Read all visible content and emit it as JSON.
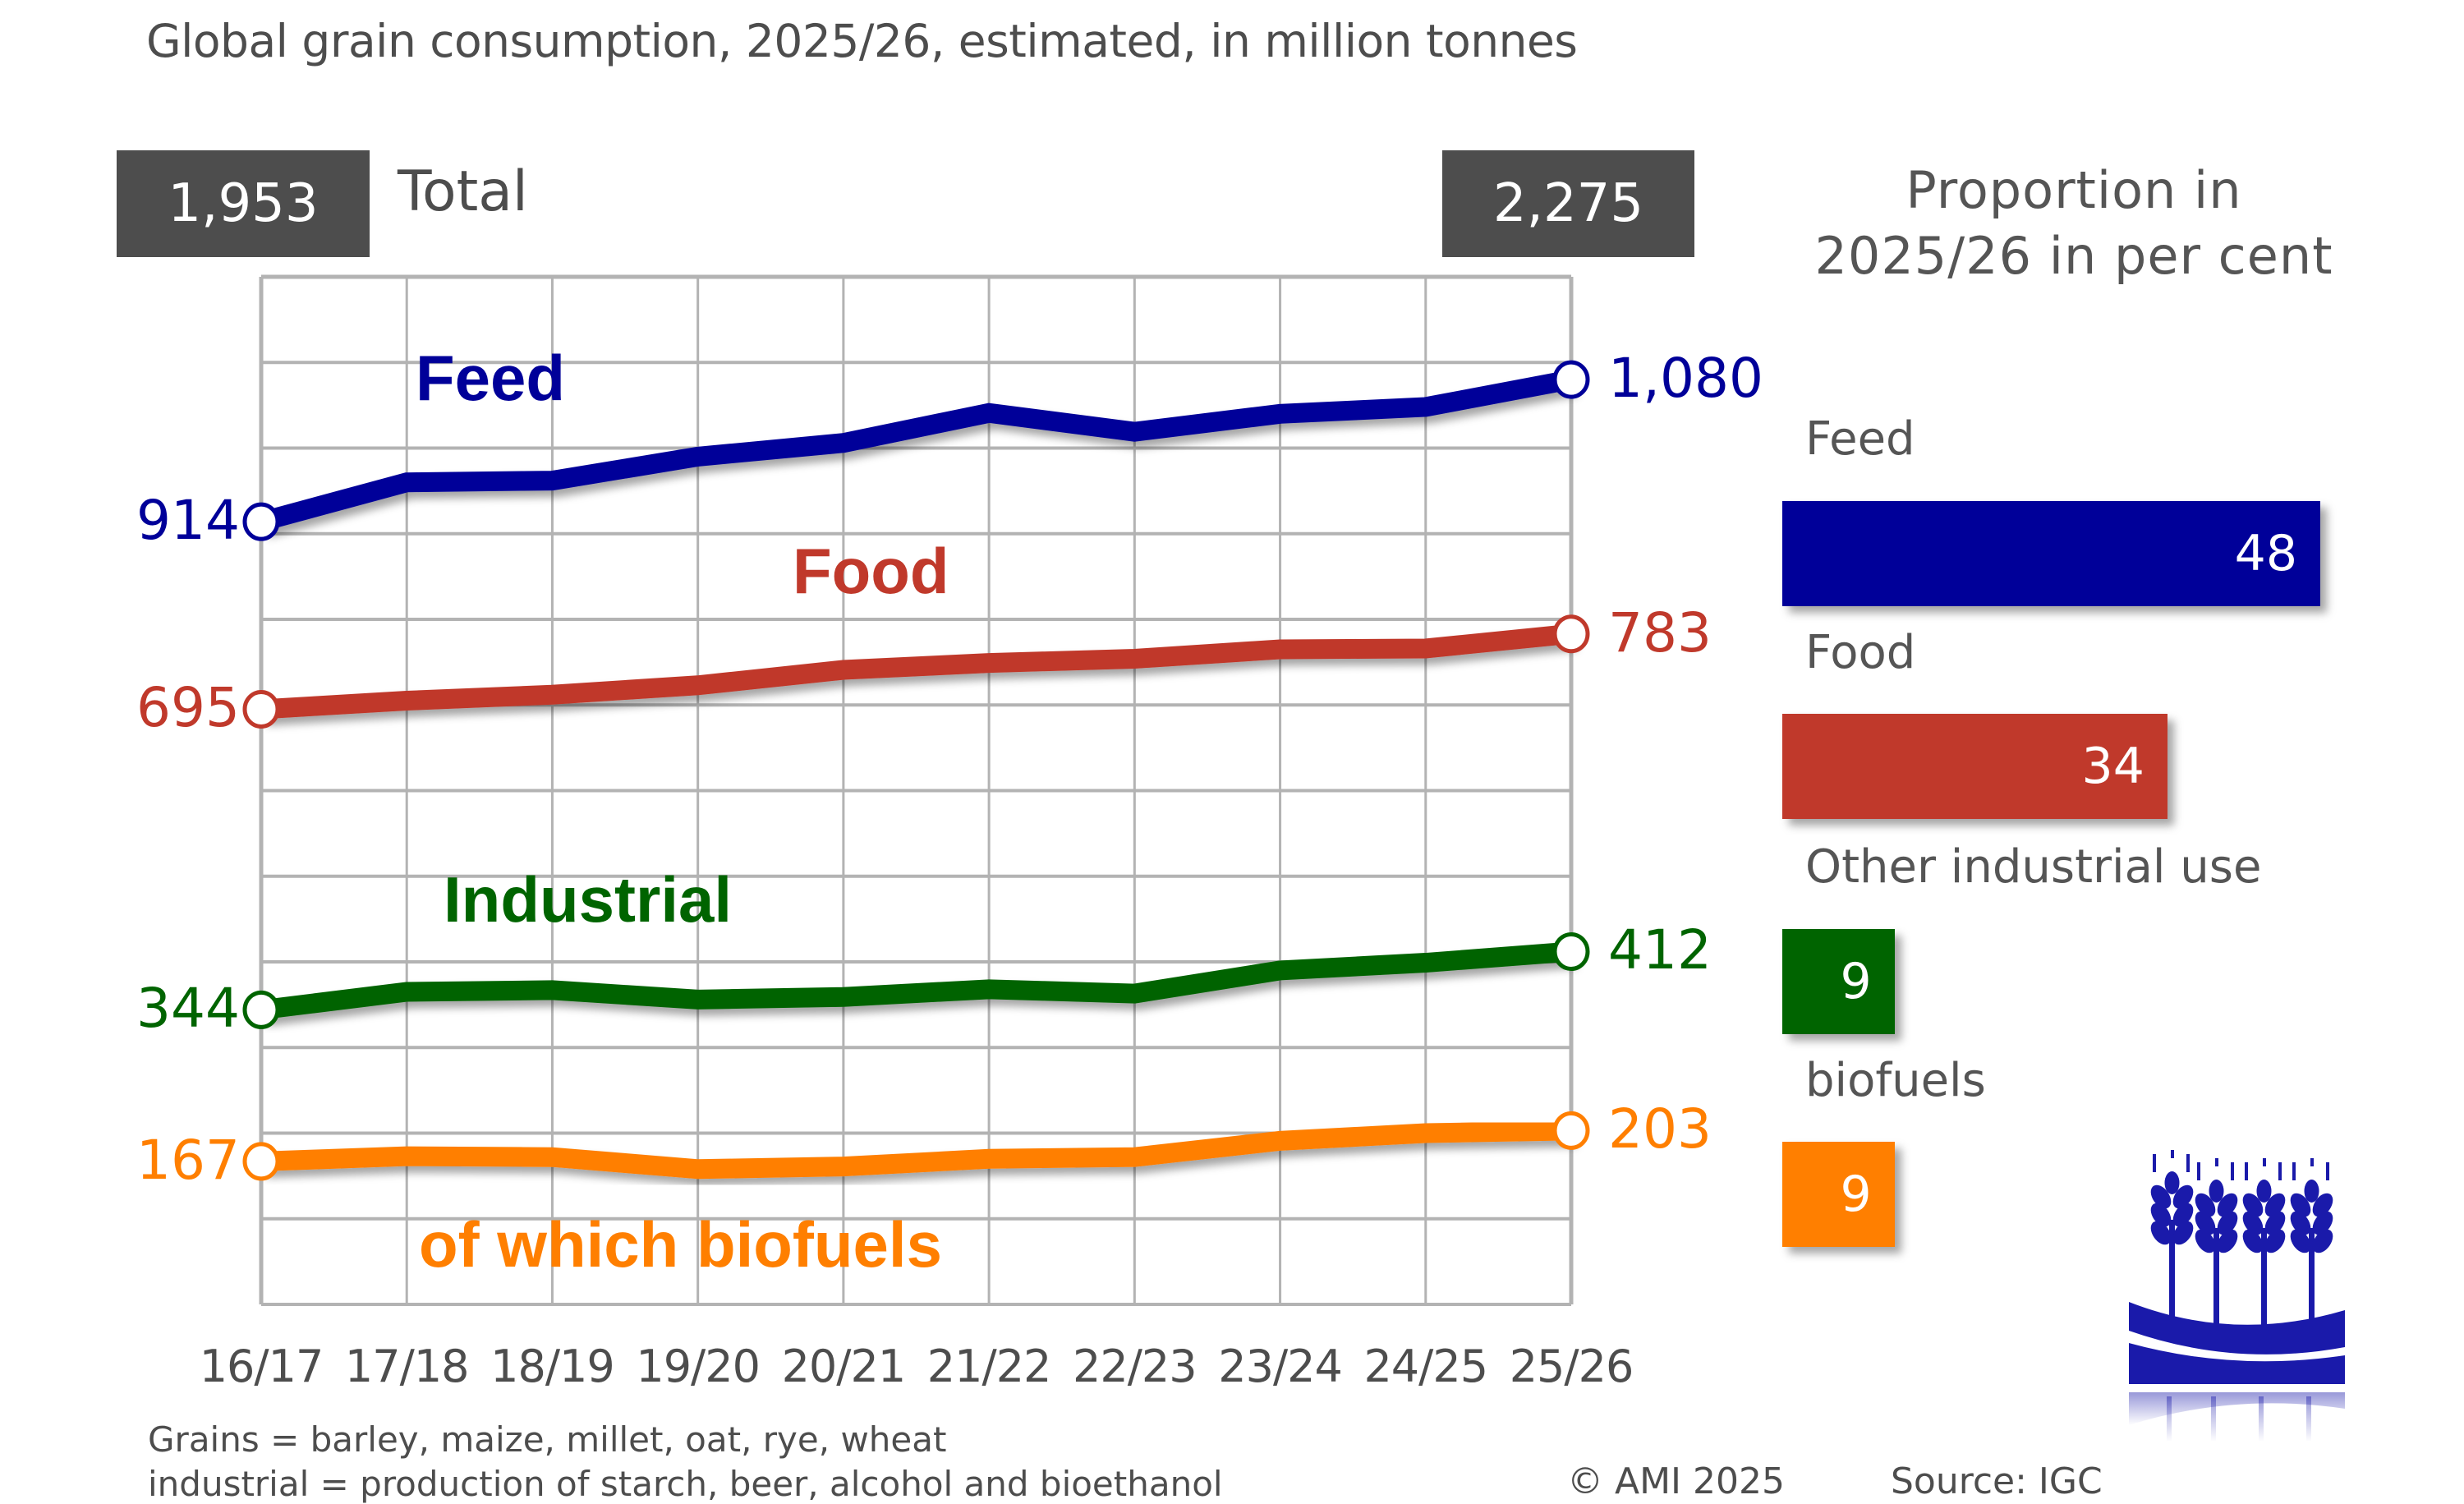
{
  "title": "Global grain consumption, 2025/26, estimated, in million tonnes",
  "totals": {
    "start_value": "1,953",
    "end_value": "2,275",
    "label": "Total"
  },
  "chart_data": {
    "type": "line",
    "title": "Global grain consumption, 2025/26, estimated, in million tonnes",
    "xlabel": "",
    "ylabel": "million tonnes",
    "ylim": [
      0,
      1200
    ],
    "grid": true,
    "y_grid_step": 100,
    "categories": [
      "16/17",
      "17/18",
      "18/19",
      "19/20",
      "20/21",
      "21/22",
      "22/23",
      "23/24",
      "24/25",
      "25/26"
    ],
    "series": [
      {
        "key": "feed",
        "name": "Feed",
        "color": "#000099",
        "start_label": "914",
        "end_label": "1,080",
        "values": [
          914,
          960,
          962,
          990,
          1006,
          1041,
          1019,
          1040,
          1048,
          1080
        ]
      },
      {
        "key": "food",
        "name": "Food",
        "color": "#c0392b",
        "start_label": "695",
        "end_label": "783",
        "values": [
          695,
          705,
          712,
          723,
          741,
          749,
          754,
          765,
          766,
          783
        ]
      },
      {
        "key": "industrial",
        "name": "Industrial",
        "color": "#006400",
        "start_label": "344",
        "end_label": "412",
        "values": [
          344,
          365,
          367,
          356,
          359,
          368,
          363,
          390,
          399,
          412
        ]
      },
      {
        "key": "biofuels",
        "name": "of which biofuels",
        "color": "#ff7f00",
        "start_label": "167",
        "end_label": "203",
        "values": [
          167,
          173,
          172,
          158,
          161,
          170,
          172,
          191,
          200,
          203
        ]
      }
    ],
    "totals": {
      "16/17": 1953,
      "25/26": 2275
    },
    "proportion_chart": {
      "type": "bar",
      "title": "Proportion in 2025/26 in per cent",
      "categories": [
        "Feed",
        "Food",
        "Other industrial use",
        "biofuels"
      ],
      "values": [
        48,
        34,
        9,
        9
      ],
      "colors": [
        "#000099",
        "#c0392b",
        "#006400",
        "#ff7f00"
      ]
    }
  },
  "share_panel": {
    "title": "Proportion in 2025/26 in per cent",
    "items": [
      {
        "label": "Feed",
        "value": "48",
        "color": "#000099"
      },
      {
        "label": "Food",
        "value": "34",
        "color": "#c0392b"
      },
      {
        "label": "Other industrial use",
        "value": "9",
        "color": "#006400"
      },
      {
        "label": "biofuels",
        "value": "9",
        "color": "#ff7f00"
      }
    ]
  },
  "footnotes": {
    "line1": "Grains = barley, maize, millet, oat, rye, wheat",
    "line2": "industrial = production of starch, beer, alcohol and bioethanol"
  },
  "copyright": "© AMI 2025",
  "source": "Source: IGC",
  "logo": {
    "icon": "grain-ears-logo-icon"
  }
}
